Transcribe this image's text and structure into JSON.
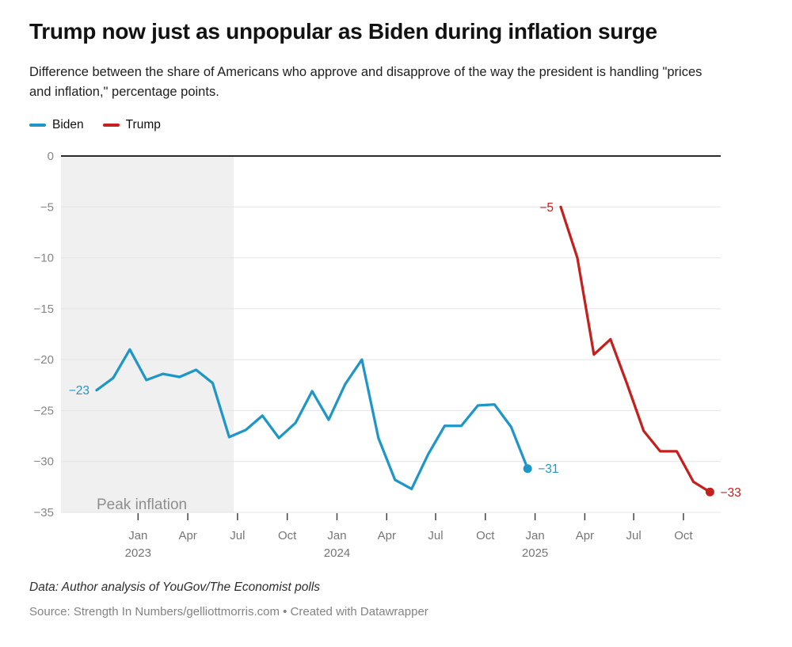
{
  "chart_data": {
    "type": "line",
    "title": "Trump now just as unpopular as Biden during inflation surge",
    "subtitle": "Difference between the share of Americans who approve and disapprove of the way the president is handling \"prices and inflation,\" percentage points.",
    "xlabel": "",
    "ylabel": "",
    "ylim": [
      -35,
      0
    ],
    "grid": true,
    "legend_position": "top-left",
    "colors": {
      "background": "#ffffff",
      "grid": "#e4e4e4",
      "zero_line": "#2b2b2b",
      "band_fill": "#f0f0f0",
      "tick_mark": "#444444"
    },
    "y_ticks": [
      {
        "v": 0,
        "label": "0"
      },
      {
        "v": -5,
        "label": "−5"
      },
      {
        "v": -10,
        "label": "−10"
      },
      {
        "v": -15,
        "label": "−15"
      },
      {
        "v": -20,
        "label": "−20"
      },
      {
        "v": -25,
        "label": "−25"
      },
      {
        "v": -30,
        "label": "−30"
      },
      {
        "v": -35,
        "label": "−35"
      }
    ],
    "x_ticks": [
      {
        "m": 2.5,
        "label": "Jan",
        "year": "2023"
      },
      {
        "m": 5.5,
        "label": "Apr"
      },
      {
        "m": 8.5,
        "label": "Jul"
      },
      {
        "m": 11.5,
        "label": "Oct"
      },
      {
        "m": 14.5,
        "label": "Jan",
        "year": "2024"
      },
      {
        "m": 17.5,
        "label": "Apr"
      },
      {
        "m": 20.45,
        "label": "Jul"
      },
      {
        "m": 23.45,
        "label": "Oct"
      },
      {
        "m": 26.45,
        "label": "Jan",
        "year": "2025"
      },
      {
        "m": 29.45,
        "label": "Apr"
      },
      {
        "m": 32.4,
        "label": "Jul"
      },
      {
        "m": 35.4,
        "label": "Oct"
      }
    ],
    "band": {
      "label": "Peak inflation",
      "to_m": 8.27
    },
    "series": [
      {
        "name": "Biden",
        "color": "#1e96c8",
        "start_m": 0,
        "months": [
          "Oct 2022",
          "Nov 2022",
          "Dec 2022",
          "Jan 2023",
          "Feb 2023",
          "Mar 2023",
          "Apr 2023",
          "May 2023",
          "Jun 2023",
          "Jul 2023",
          "Aug 2023",
          "Sep 2023",
          "Oct 2023",
          "Nov 2023",
          "Dec 2023",
          "Jan 2024",
          "Feb 2024",
          "Mar 2024",
          "Apr 2024",
          "May 2024",
          "Jun 2024",
          "Jul 2024",
          "Aug 2024",
          "Sep 2024",
          "Oct 2024",
          "Nov 2024",
          "Dec 2024"
        ],
        "values": [
          -23,
          -21.8,
          -19,
          -22,
          -21.4,
          -21.7,
          -21,
          -22.3,
          -27.6,
          -26.9,
          -25.5,
          -27.7,
          -26.2,
          -23.1,
          -25.9,
          -22.4,
          -20,
          -27.7,
          -31.8,
          -32.7,
          -29.3,
          -26.5,
          -26.5,
          -24.5,
          -24.4,
          -26.6,
          -30.7
        ],
        "first_label": "−23",
        "last_label": "−31",
        "end_dot": true
      },
      {
        "name": "Trump",
        "color": "#c4201d",
        "start_m": 28,
        "months": [
          "Feb 2025",
          "Mar 2025",
          "Apr 2025",
          "May 2025",
          "Jun 2025",
          "Jul 2025",
          "Aug 2025",
          "Sep 2025",
          "Oct 2025",
          "Nov 2025"
        ],
        "values": [
          -5,
          -10,
          -19.5,
          -18,
          -22.4,
          -27,
          -29,
          -29,
          -32,
          -33
        ],
        "first_label": "−5",
        "last_label": "−33",
        "end_dot": true
      }
    ]
  },
  "footer": {
    "data_line": "Data: Author analysis of YouGov/The Economist polls",
    "source_line": "Source: Strength In Numbers/gelliottmorris.com • Created with Datawrapper"
  }
}
